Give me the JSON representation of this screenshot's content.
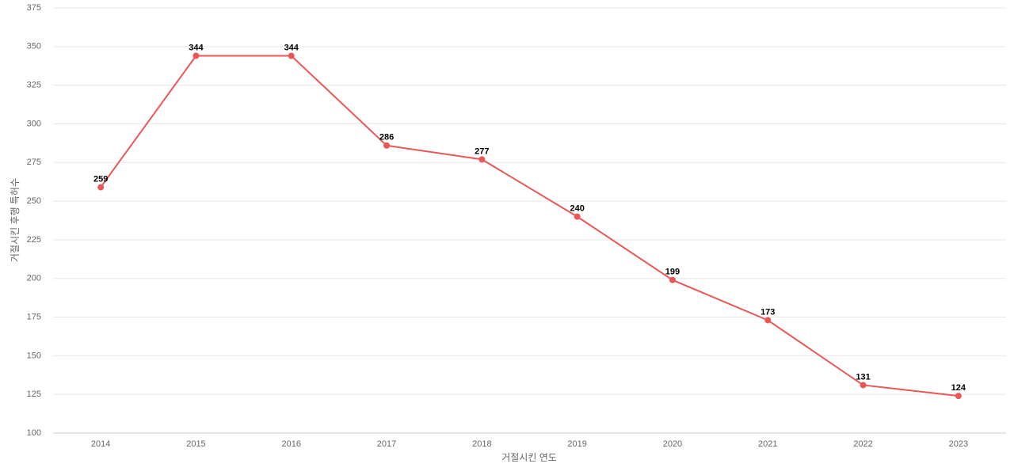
{
  "chart_data": {
    "type": "line",
    "x_label": "거절시킨 연도",
    "y_label": "거절시킨 후행 특허수",
    "categories": [
      "2014",
      "2015",
      "2016",
      "2017",
      "2018",
      "2019",
      "2020",
      "2021",
      "2022",
      "2023"
    ],
    "series": [
      {
        "name": "후행 특허수",
        "color": "#eb5757",
        "values": [
          259,
          344,
          344,
          286,
          277,
          240,
          199,
          173,
          131,
          124
        ]
      }
    ],
    "ylim": [
      100,
      375
    ],
    "yticks": [
      100,
      125,
      150,
      175,
      200,
      225,
      250,
      275,
      300,
      325,
      350,
      375
    ],
    "grid": true
  }
}
